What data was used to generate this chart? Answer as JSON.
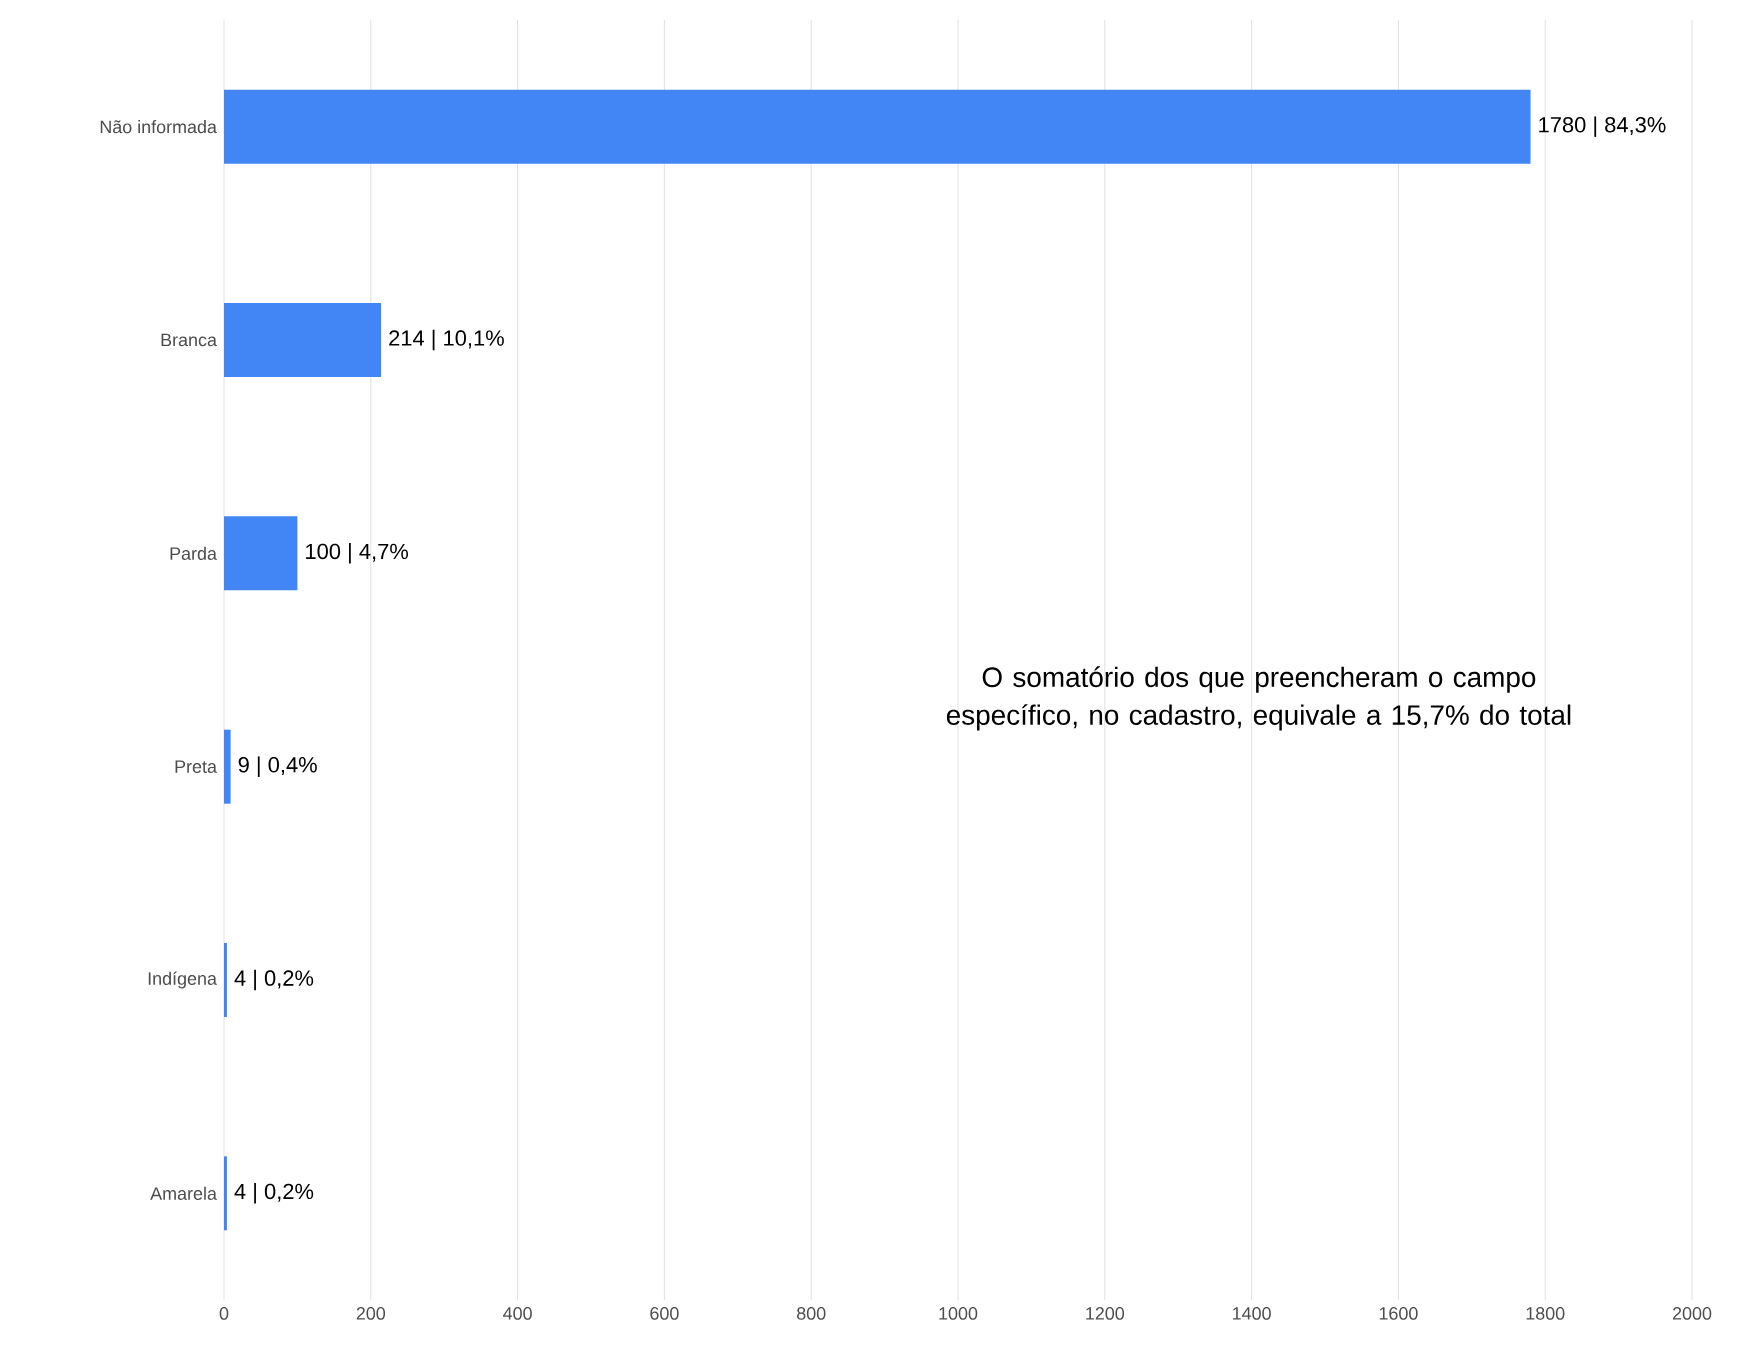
{
  "chart_data": {
    "type": "bar",
    "orientation": "horizontal",
    "categories": [
      "Não informada",
      "Branca",
      "Parda",
      "Preta",
      "Indígena",
      "Amarela"
    ],
    "values": [
      1780,
      214,
      100,
      9,
      4,
      4
    ],
    "value_labels": [
      "1780  |  84,3%",
      "214  |  10,1%",
      "100  |  4,7%",
      "9  |  0,4%",
      "4  |  0,2%",
      "4  |  0,2%"
    ],
    "color": "#4285f4",
    "xlim": [
      0,
      2000
    ],
    "xticks": [
      0,
      200,
      400,
      600,
      800,
      1000,
      1200,
      1400,
      1600,
      1800,
      2000
    ],
    "grid": "x",
    "annotations": [
      "O somatório dos que preencheram o campo específico, no cadastro, equivale a 15,7% do total"
    ]
  }
}
